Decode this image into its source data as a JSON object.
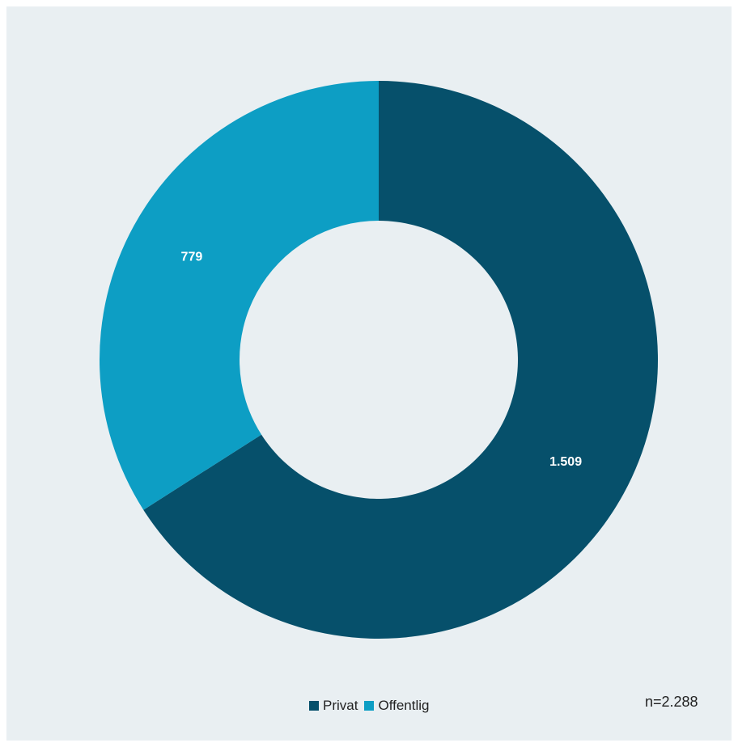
{
  "chart_data": {
    "type": "pie",
    "variant": "donut",
    "categories": [
      "Privat",
      "Offentlig"
    ],
    "values": [
      1509,
      779
    ],
    "value_labels": [
      "1.509",
      "779"
    ],
    "colors": [
      "#06506b",
      "#0d9ec4"
    ],
    "legend_position": "bottom",
    "title": "",
    "note": "n=2.288"
  }
}
